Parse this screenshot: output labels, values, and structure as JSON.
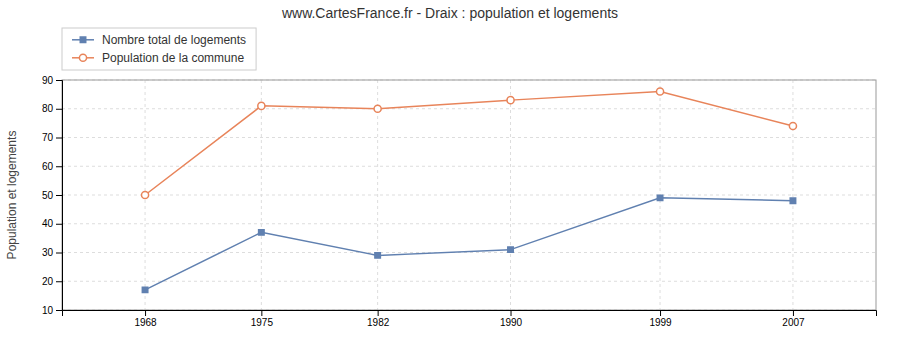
{
  "chart_data": {
    "type": "line",
    "title": "www.CartesFrance.fr - Draix : population et logements",
    "ylabel": "Population et logements",
    "x": [
      1968,
      1975,
      1982,
      1990,
      1999,
      2007
    ],
    "series": [
      {
        "name": "Nombre total de logements",
        "color": "#6080b0",
        "marker": "square",
        "values": [
          17,
          37,
          29,
          31,
          49,
          48
        ]
      },
      {
        "name": "Population de la commune",
        "color": "#e8845a",
        "marker": "circle",
        "values": [
          50,
          81,
          80,
          83,
          86,
          74
        ]
      }
    ],
    "xlim": [
      1963,
      2012
    ],
    "xticks": [
      1968,
      1975,
      1982,
      1990,
      1999,
      2007
    ],
    "ylim": [
      10,
      90
    ],
    "yticks": [
      10,
      20,
      30,
      40,
      50,
      60,
      70,
      80,
      90
    ],
    "grid": true,
    "legend": "upper left"
  }
}
